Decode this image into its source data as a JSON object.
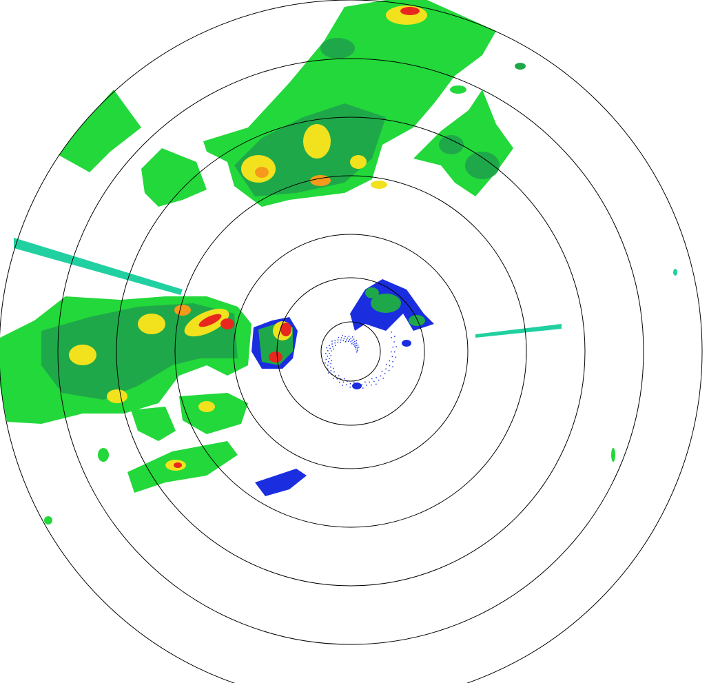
{
  "view": "radar-reflectivity-ppi",
  "colors": {
    "background": "#ffffff",
    "range_rings": "#000000",
    "light_blue": "#1a2ee0",
    "cyan": "#20d0a0",
    "light_green": "#22d83a",
    "green": "#1fa84a",
    "yellow": "#f2e21e",
    "orange": "#f59a1a",
    "red": "#e8281e"
  },
  "range_ring_count": 7
}
